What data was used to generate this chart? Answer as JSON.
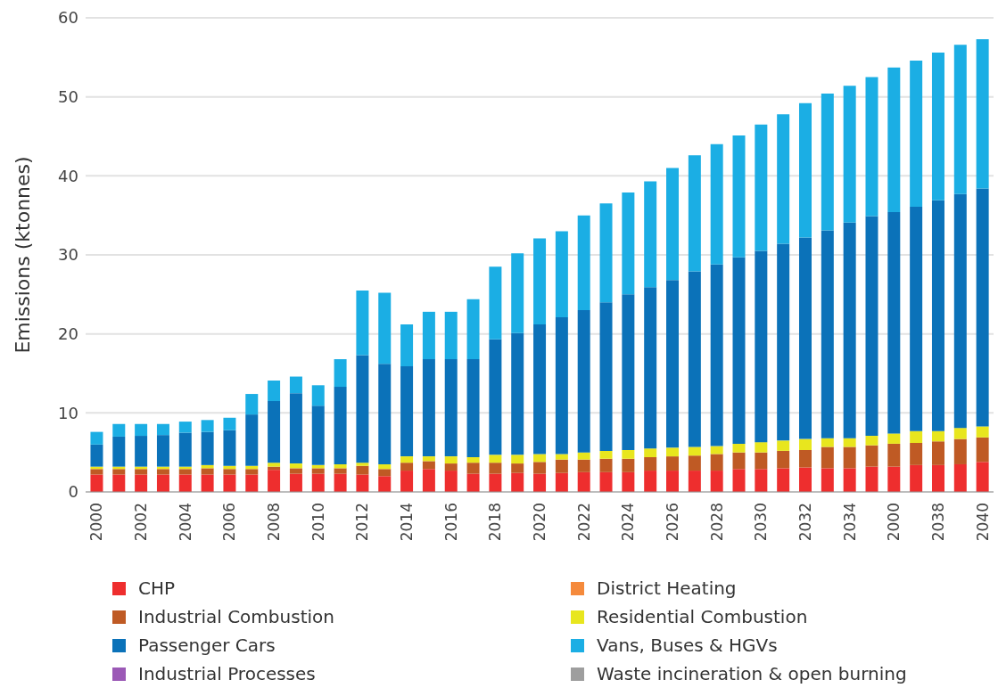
{
  "chart_data": {
    "type": "bar",
    "stacked": true,
    "ylabel": "Emissions (ktonnes)",
    "categories": [
      "2000",
      null,
      "2002",
      null,
      "2004",
      null,
      "2006",
      null,
      "2008",
      null,
      "2010",
      null,
      "2012",
      null,
      "2014",
      null,
      "2016",
      null,
      "2018",
      null,
      "2020",
      null,
      "2022",
      null,
      "2024",
      null,
      "2026",
      null,
      "2028",
      null,
      "2030",
      null,
      "2032",
      null,
      "2034",
      null,
      "2000",
      null,
      "2038",
      null,
      "2040"
    ],
    "ylim": [
      0,
      60
    ],
    "yticks": [
      0,
      10,
      20,
      30,
      40,
      50,
      60
    ],
    "grid": "y",
    "legend": "bottom",
    "series": [
      {
        "name": "CHP",
        "color": "#ee2e2e",
        "values": [
          2.2,
          2.2,
          2.2,
          2.2,
          2.2,
          2.2,
          2.2,
          2.2,
          2.8,
          2.3,
          2.3,
          2.3,
          2.2,
          2.0,
          2.7,
          2.9,
          2.7,
          2.3,
          2.3,
          2.4,
          2.3,
          2.4,
          2.5,
          2.5,
          2.5,
          2.7,
          2.7,
          2.7,
          2.7,
          2.9,
          2.9,
          3.0,
          3.1,
          3.0,
          3.0,
          3.2,
          3.2,
          3.4,
          3.4,
          3.5,
          3.8
        ]
      },
      {
        "name": "District Heating",
        "color": "#f58a3c",
        "values": [
          0,
          0,
          0,
          0,
          0,
          0,
          0,
          0,
          0,
          0,
          0,
          0,
          0,
          0,
          0,
          0,
          0,
          0,
          0,
          0,
          0,
          0,
          0,
          0,
          0,
          0,
          0,
          0,
          0,
          0,
          0,
          0,
          0,
          0,
          0,
          0,
          0,
          0,
          0,
          0,
          0
        ]
      },
      {
        "name": "Industrial Combustion",
        "color": "#bf5a24",
        "values": [
          0.7,
          0.7,
          0.7,
          0.7,
          0.7,
          0.8,
          0.7,
          0.7,
          0.4,
          0.7,
          0.7,
          0.7,
          1.1,
          0.9,
          1.0,
          1.0,
          0.9,
          1.4,
          1.4,
          1.2,
          1.5,
          1.7,
          1.6,
          1.7,
          1.7,
          1.7,
          1.8,
          1.9,
          2.1,
          2.1,
          2.1,
          2.2,
          2.2,
          2.7,
          2.7,
          2.7,
          2.9,
          2.8,
          3.0,
          3.2,
          3.1
        ]
      },
      {
        "name": "Residential Combustion",
        "color": "#e8e61e",
        "values": [
          0.3,
          0.3,
          0.3,
          0.3,
          0.3,
          0.4,
          0.4,
          0.4,
          0.5,
          0.6,
          0.4,
          0.5,
          0.4,
          0.6,
          0.8,
          0.6,
          0.9,
          0.7,
          1.0,
          1.1,
          1.0,
          0.7,
          0.9,
          1.0,
          1.1,
          1.1,
          1.1,
          1.1,
          1.0,
          1.1,
          1.3,
          1.3,
          1.4,
          1.1,
          1.1,
          1.2,
          1.3,
          1.5,
          1.3,
          1.4,
          1.4
        ]
      },
      {
        "name": "Passenger Cars",
        "color": "#0b72b9",
        "values": [
          2.8,
          3.8,
          3.9,
          4.0,
          4.3,
          4.2,
          4.5,
          6.5,
          7.8,
          8.9,
          7.5,
          9.8,
          13.6,
          12.7,
          11.4,
          12.3,
          12.3,
          12.4,
          14.6,
          15.4,
          16.4,
          17.3,
          18.0,
          18.8,
          19.7,
          20.4,
          21.2,
          22.2,
          23.0,
          23.6,
          24.2,
          24.9,
          25.5,
          26.3,
          27.3,
          27.8,
          28.0,
          28.4,
          29.2,
          29.6,
          30.1
        ]
      },
      {
        "name": "Vans, Buses & HGVs",
        "color": "#1baee4",
        "values": [
          1.6,
          1.6,
          1.5,
          1.4,
          1.4,
          1.5,
          1.6,
          2.6,
          2.6,
          2.1,
          2.6,
          3.5,
          8.2,
          9.0,
          5.3,
          6.0,
          6.0,
          7.6,
          9.2,
          10.1,
          10.9,
          10.9,
          12.0,
          12.5,
          12.9,
          13.4,
          14.2,
          14.7,
          15.2,
          15.4,
          16.0,
          16.4,
          17.0,
          17.3,
          17.3,
          17.6,
          18.3,
          18.5,
          18.7,
          18.9,
          18.9
        ]
      },
      {
        "name": "Industrial Processes",
        "color": "#9b59b6",
        "values": [
          0,
          0,
          0,
          0,
          0,
          0,
          0,
          0,
          0,
          0,
          0,
          0,
          0,
          0,
          0,
          0,
          0,
          0,
          0,
          0,
          0,
          0,
          0,
          0,
          0,
          0,
          0,
          0,
          0,
          0,
          0,
          0,
          0,
          0,
          0,
          0,
          0,
          0,
          0,
          0,
          0
        ]
      },
      {
        "name": "Waste incineration & open burning",
        "color": "#9e9e9e",
        "values": [
          0,
          0,
          0,
          0,
          0,
          0,
          0,
          0,
          0,
          0,
          0,
          0,
          0,
          0,
          0,
          0,
          0,
          0,
          0,
          0,
          0,
          0,
          0,
          0,
          0,
          0,
          0,
          0,
          0,
          0,
          0,
          0,
          0,
          0,
          0,
          0,
          0,
          0,
          0,
          0,
          0
        ]
      }
    ]
  }
}
